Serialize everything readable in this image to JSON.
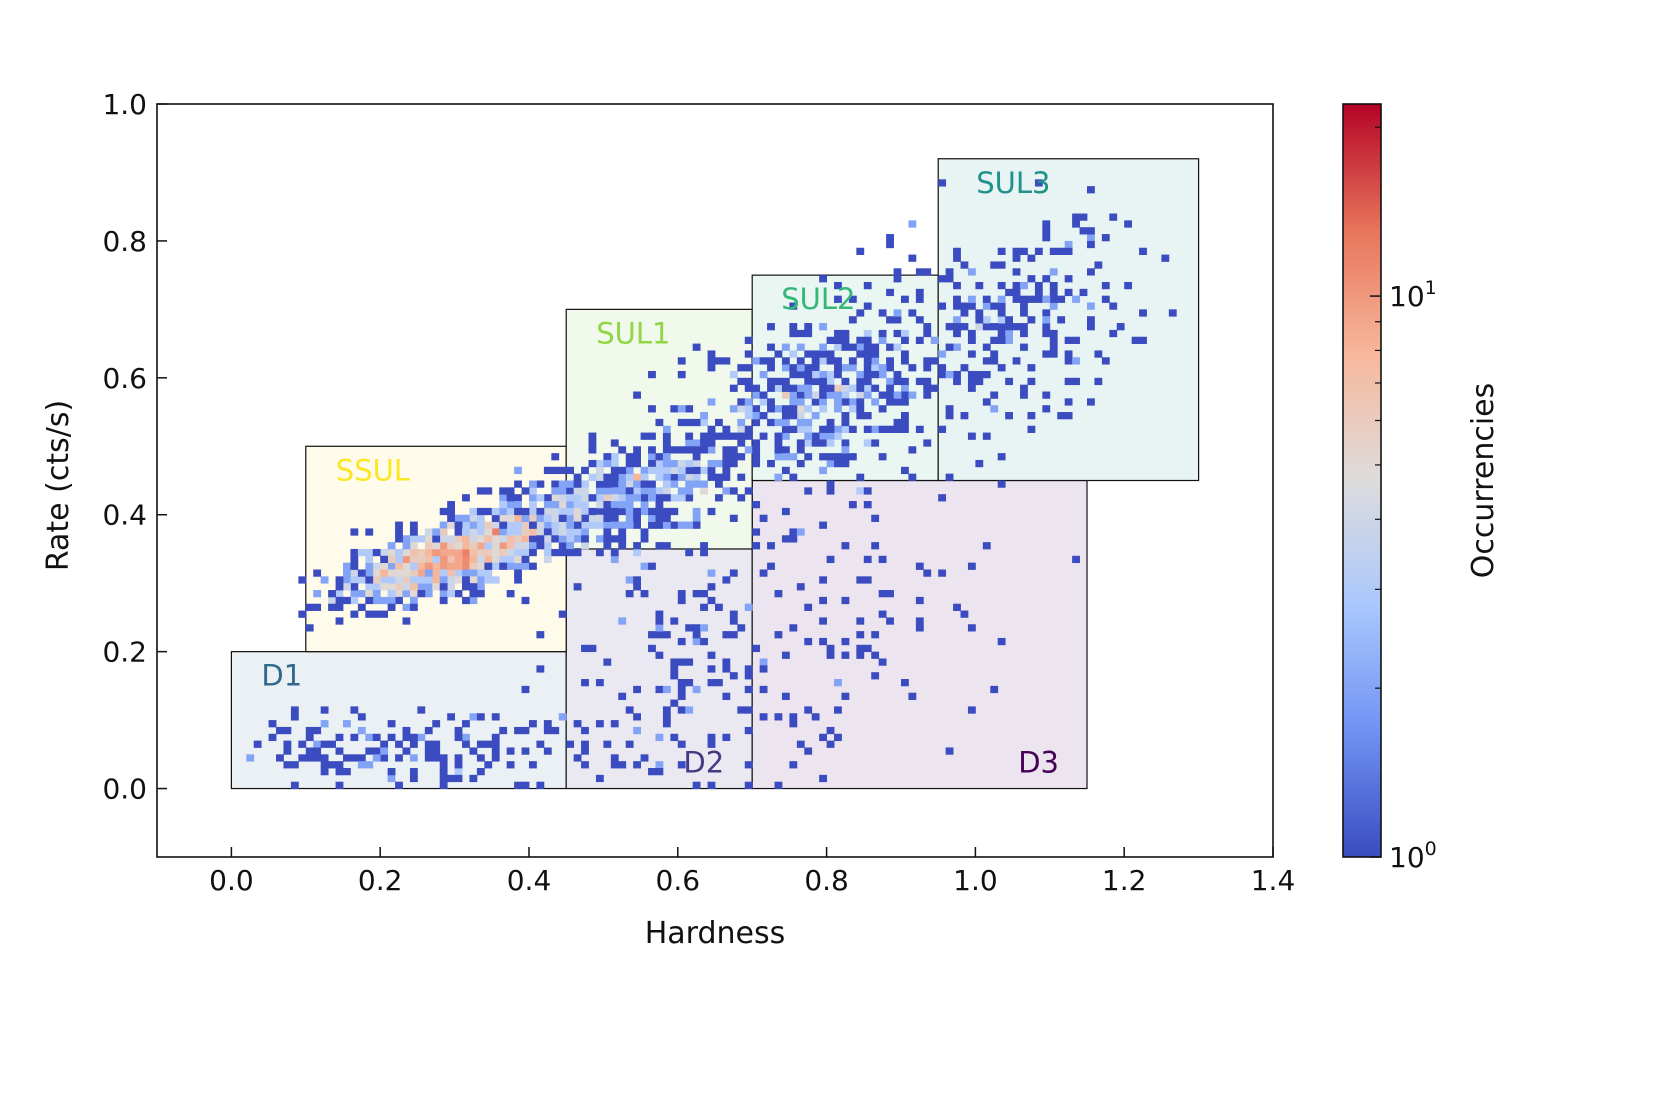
{
  "chart_data": {
    "type": "heatmap",
    "title": "",
    "xlabel": "Hardness",
    "ylabel": "Rate (cts/s)",
    "xlim": [
      -0.1,
      1.4
    ],
    "ylim": [
      -0.1,
      1.0
    ],
    "x_ticks": [
      "0.0",
      "0.2",
      "0.4",
      "0.6",
      "0.8",
      "1.0",
      "1.2",
      "1.4"
    ],
    "y_ticks": [
      "0.0",
      "0.2",
      "0.4",
      "0.6",
      "0.8",
      "1.0"
    ],
    "x_tick_values": [
      0.0,
      0.2,
      0.4,
      0.6,
      0.8,
      1.0,
      1.2,
      1.4
    ],
    "y_tick_values": [
      0.0,
      0.2,
      0.4,
      0.6,
      0.8,
      1.0
    ],
    "grid": false,
    "colorbar": {
      "label": "Occurrencies",
      "scale": "log",
      "range": [
        1,
        22
      ],
      "ticks": [
        {
          "value": 1,
          "base": "10",
          "exp": "0"
        },
        {
          "value": 10,
          "base": "10",
          "exp": "1"
        }
      ],
      "colormap": [
        "#3b4cc0",
        "#6f92f3",
        "#aac7fd",
        "#dddcdc",
        "#f7b89c",
        "#e7745b",
        "#b40426"
      ]
    },
    "regions": [
      {
        "name": "D1",
        "x": [
          0.0,
          0.45
        ],
        "y": [
          0.0,
          0.2
        ],
        "fill": "#eaf0f4",
        "color": "#31688e"
      },
      {
        "name": "D2",
        "x": [
          0.45,
          0.7
        ],
        "y": [
          0.0,
          0.35
        ],
        "fill": "#eae9f2",
        "color": "#443983"
      },
      {
        "name": "D3",
        "x": [
          0.7,
          1.15
        ],
        "y": [
          0.0,
          0.45
        ],
        "fill": "#ece4ee",
        "color": "#440154"
      },
      {
        "name": "SSUL",
        "x": [
          0.1,
          0.45
        ],
        "y": [
          0.2,
          0.5
        ],
        "fill": "#fffbea",
        "color": "#fde725"
      },
      {
        "name": "SUL1",
        "x": [
          0.45,
          0.7
        ],
        "y": [
          0.35,
          0.7
        ],
        "fill": "#f1f8ec",
        "color": "#8fd744"
      },
      {
        "name": "SUL2",
        "x": [
          0.7,
          0.95
        ],
        "y": [
          0.45,
          0.75
        ],
        "fill": "#e9f6f1",
        "color": "#35b779"
      },
      {
        "name": "SUL3",
        "x": [
          0.95,
          1.3
        ],
        "y": [
          0.45,
          0.92
        ],
        "fill": "#e8f3f3",
        "color": "#21918c"
      }
    ],
    "bin_size": {
      "x": 0.01,
      "y": 0.01
    },
    "density_clusters": [
      {
        "cx": 0.28,
        "cy": 0.335,
        "sx": 0.065,
        "sy": 0.025,
        "tilt": 0.3,
        "n": 900,
        "seed": 11
      },
      {
        "cx": 0.42,
        "cy": 0.39,
        "sx": 0.07,
        "sy": 0.035,
        "tilt": 0.35,
        "n": 380,
        "seed": 12
      },
      {
        "cx": 0.57,
        "cy": 0.45,
        "sx": 0.07,
        "sy": 0.04,
        "tilt": 0.35,
        "n": 330,
        "seed": 13
      },
      {
        "cx": 0.8,
        "cy": 0.58,
        "sx": 0.08,
        "sy": 0.06,
        "tilt": 0.2,
        "n": 440,
        "seed": 14
      },
      {
        "cx": 1.05,
        "cy": 0.7,
        "sx": 0.09,
        "sy": 0.07,
        "tilt": 0.25,
        "n": 240,
        "seed": 15
      },
      {
        "cx": 0.22,
        "cy": 0.055,
        "sx": 0.14,
        "sy": 0.03,
        "tilt": 0.0,
        "n": 170,
        "seed": 16
      },
      {
        "cx": 0.6,
        "cy": 0.18,
        "sx": 0.09,
        "sy": 0.11,
        "tilt": 0.0,
        "n": 150,
        "seed": 17
      },
      {
        "cx": 0.82,
        "cy": 0.25,
        "sx": 0.12,
        "sy": 0.14,
        "tilt": 0.0,
        "n": 110,
        "seed": 18
      }
    ]
  }
}
